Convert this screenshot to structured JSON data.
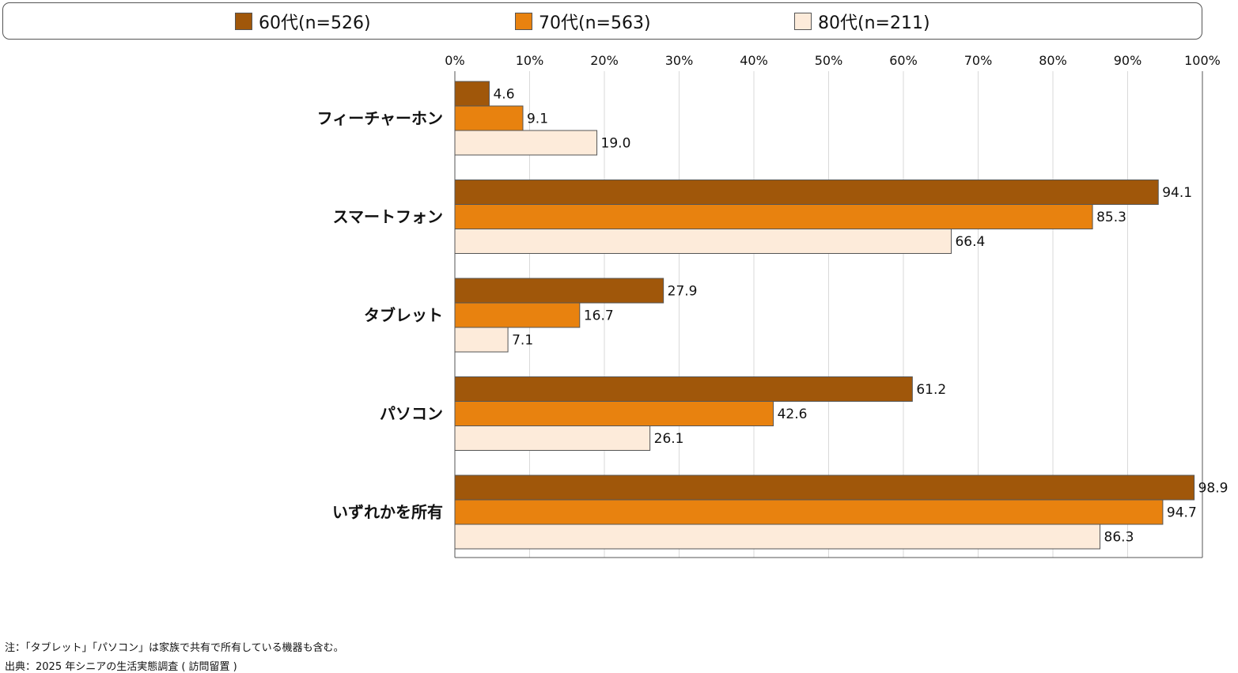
{
  "chart_data": {
    "type": "bar",
    "orientation": "horizontal",
    "categories": [
      "フィーチャーホン",
      "スマートフォン",
      "タブレット",
      "パソコン",
      "いずれかを所有"
    ],
    "series": [
      {
        "name": "60代(n=526)",
        "color": "#a0570a",
        "values": [
          4.6,
          94.1,
          27.9,
          61.2,
          98.9
        ]
      },
      {
        "name": "70代(n=563)",
        "color": "#e8820f",
        "values": [
          9.1,
          85.3,
          16.7,
          42.6,
          94.7
        ]
      },
      {
        "name": "80代(n=211)",
        "color": "#fdebda",
        "values": [
          19.0,
          66.4,
          7.1,
          26.1,
          86.3
        ]
      }
    ],
    "value_labels": [
      [
        "4.6",
        "94.1",
        "27.9",
        "61.2",
        "98.9"
      ],
      [
        "9.1",
        "85.3",
        "16.7",
        "42.6",
        "94.7"
      ],
      [
        "19.0",
        "66.4",
        "7.1",
        "26.1",
        "86.3"
      ]
    ],
    "xlim": [
      0,
      100
    ],
    "x_ticks": [
      "0%",
      "10%",
      "20%",
      "30%",
      "40%",
      "50%",
      "60%",
      "70%",
      "80%",
      "90%",
      "100%"
    ],
    "grid": true,
    "legend_position": "top",
    "title": "",
    "xlabel": "",
    "ylabel": ""
  },
  "notes": {
    "note": "注：「タブレット」「パソコン」は家族で共有で所有している機器も含む。",
    "source": "出典：2025 年シニアの生活実態調査 ( 訪問留置 )"
  },
  "colors": {
    "axis": "#555555",
    "grid": "#d9d9d9",
    "bar_border": "#555555"
  }
}
